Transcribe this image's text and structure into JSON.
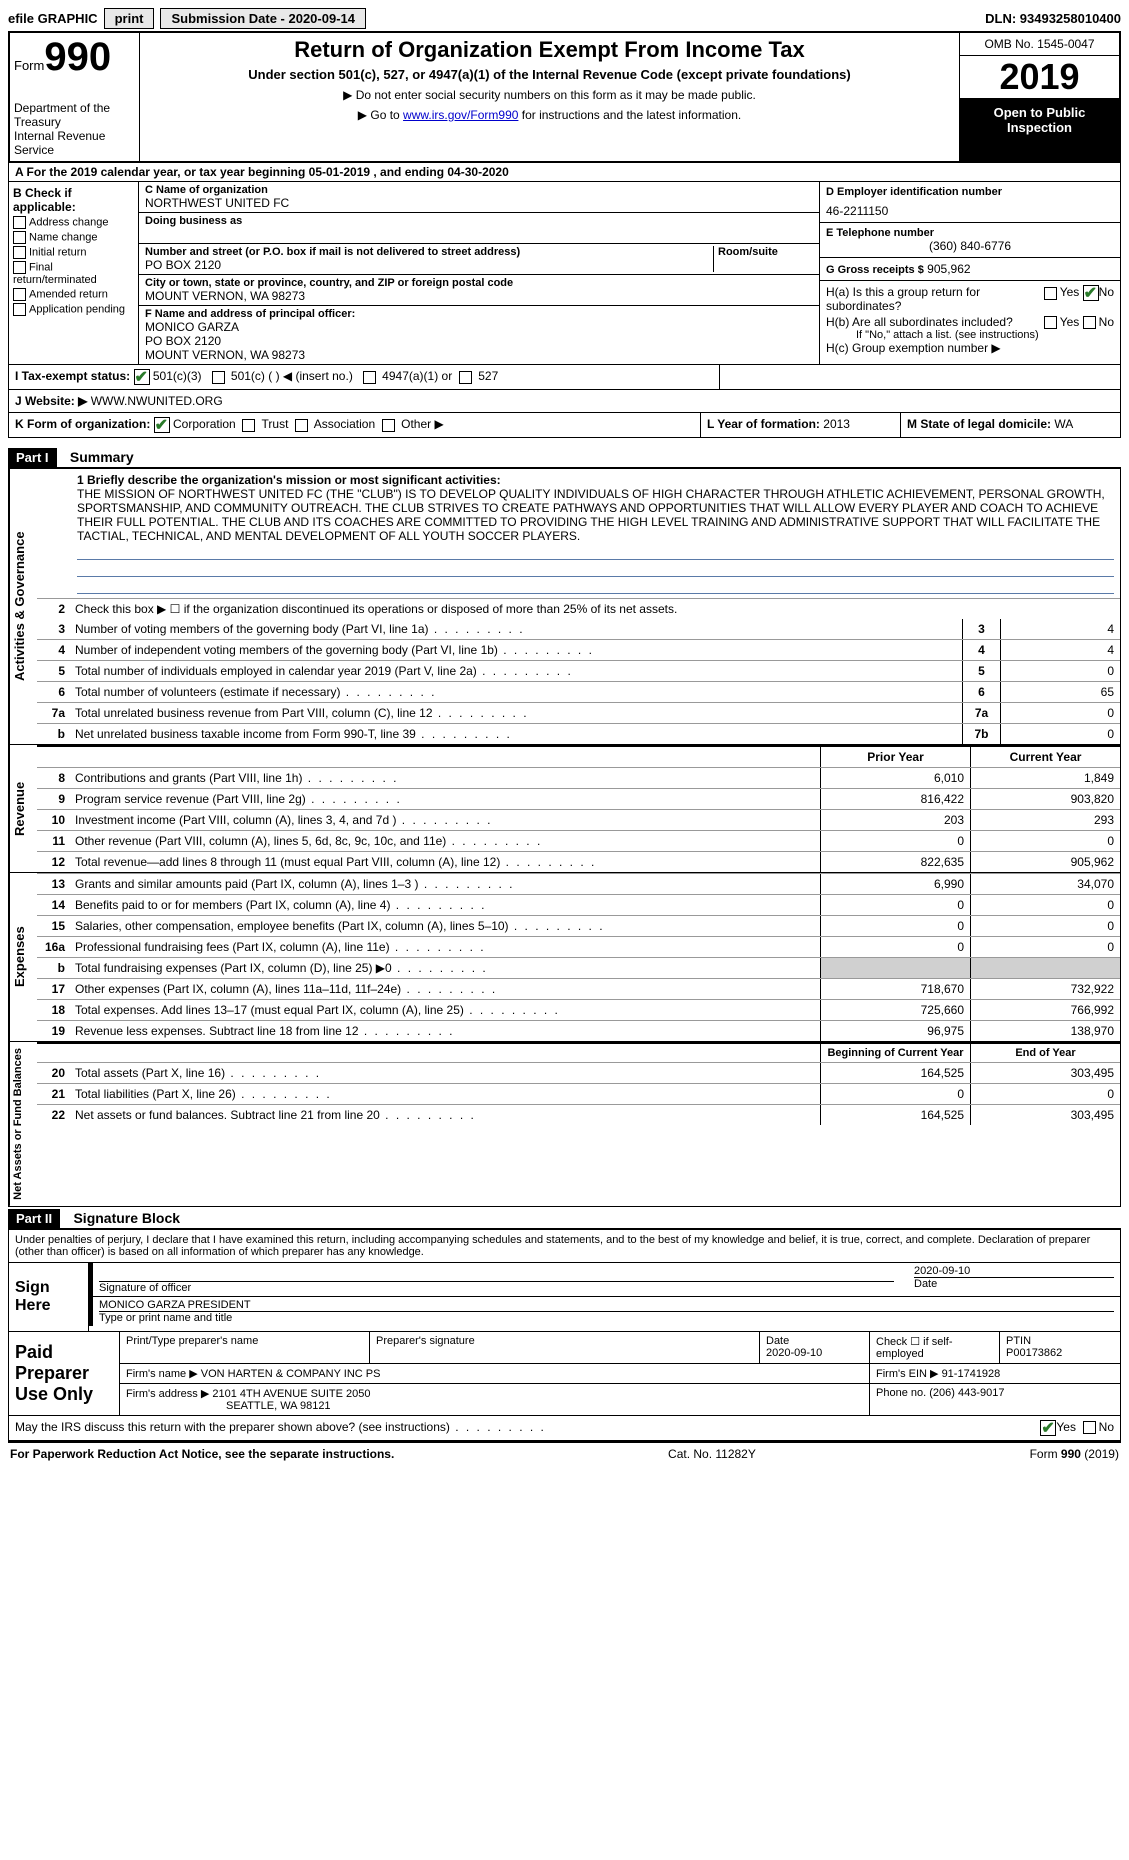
{
  "topbar": {
    "efile_label": "efile GRAPHIC",
    "print_btn": "print",
    "submission_label": "Submission Date - 2020-09-14",
    "dln": "DLN: 93493258010400"
  },
  "header": {
    "form_word": "Form",
    "form_number": "990",
    "dept_line1": "Department of the Treasury",
    "dept_line2": "Internal Revenue Service",
    "title": "Return of Organization Exempt From Income Tax",
    "subtitle": "Under section 501(c), 527, or 4947(a)(1) of the Internal Revenue Code (except private foundations)",
    "note1": "▶ Do not enter social security numbers on this form as it may be made public.",
    "note2_pre": "▶ Go to ",
    "note2_link": "www.irs.gov/Form990",
    "note2_post": " for instructions and the latest information.",
    "omb": "OMB No. 1545-0047",
    "year": "2019",
    "open_inspect": "Open to Public Inspection"
  },
  "section_a": "A For the 2019 calendar year, or tax year beginning 05-01-2019   , and ending 04-30-2020",
  "col_b": {
    "header": "B Check if applicable:",
    "items": [
      "Address change",
      "Name change",
      "Initial return",
      "Final return/terminated",
      "Amended return",
      "Application pending"
    ]
  },
  "col_c": {
    "name_label": "C Name of organization",
    "name": "NORTHWEST UNITED FC",
    "dba_label": "Doing business as",
    "addr_label": "Number and street (or P.O. box if mail is not delivered to street address)",
    "room_label": "Room/suite",
    "addr": "PO BOX 2120",
    "city_label": "City or town, state or province, country, and ZIP or foreign postal code",
    "city": "MOUNT VERNON, WA  98273",
    "officer_label": "F  Name and address of principal officer:",
    "officer_name": "MONICO GARZA",
    "officer_addr1": "PO BOX 2120",
    "officer_addr2": "MOUNT VERNON, WA  98273"
  },
  "col_d": {
    "ein_label": "D Employer identification number",
    "ein": "46-2211150",
    "tel_label": "E Telephone number",
    "tel": "(360) 840-6776",
    "gross_label": "G Gross receipts $",
    "gross": "905,962"
  },
  "section_h": {
    "ha": "H(a)  Is this a group return for subordinates?",
    "hb": "H(b)  Are all subordinates included?",
    "hb_note": "If \"No,\" attach a list. (see instructions)",
    "hc": "H(c)  Group exemption number ▶",
    "yes": "Yes",
    "no": "No"
  },
  "tax_status": {
    "i_label": "I   Tax-exempt status:",
    "opt1": "501(c)(3)",
    "opt2": "501(c) (  ) ◀ (insert no.)",
    "opt3": "4947(a)(1) or",
    "opt4": "527"
  },
  "website": {
    "j_label": "J   Website: ▶",
    "url": "WWW.NWUNITED.ORG"
  },
  "form_org": {
    "k_label": "K Form of organization:",
    "corp": "Corporation",
    "trust": "Trust",
    "assoc": "Association",
    "other": "Other ▶",
    "l_label": "L Year of formation:",
    "l_val": "2013",
    "m_label": "M State of legal domicile:",
    "m_val": "WA"
  },
  "part1": {
    "header": "Part I",
    "title": "Summary"
  },
  "governance": {
    "label": "Activities & Governance",
    "q1_label": "1   Briefly describe the organization's mission or most significant activities:",
    "mission": "THE MISSION OF NORTHWEST UNITED FC (THE \"CLUB\") IS TO DEVELOP QUALITY INDIVIDUALS OF HIGH CHARACTER THROUGH ATHLETIC ACHIEVEMENT, PERSONAL GROWTH, SPORTSMANSHIP, AND COMMUNITY OUTREACH. THE CLUB STRIVES TO CREATE PATHWAYS AND OPPORTUNITIES THAT WILL ALLOW EVERY PLAYER AND COACH TO ACHIEVE THEIR FULL POTENTIAL. THE CLUB AND ITS COACHES ARE COMMITTED TO PROVIDING THE HIGH LEVEL TRAINING AND ADMINISTRATIVE SUPPORT THAT WILL FACILITATE THE TACTIAL, TECHNICAL, AND MENTAL DEVELOPMENT OF ALL YOUTH SOCCER PLAYERS.",
    "q2": "Check this box ▶ ☐  if the organization discontinued its operations or disposed of more than 25% of its net assets.",
    "lines": [
      {
        "n": "3",
        "t": "Number of voting members of the governing body (Part VI, line 1a)",
        "bn": "3",
        "v": "4"
      },
      {
        "n": "4",
        "t": "Number of independent voting members of the governing body (Part VI, line 1b)",
        "bn": "4",
        "v": "4"
      },
      {
        "n": "5",
        "t": "Total number of individuals employed in calendar year 2019 (Part V, line 2a)",
        "bn": "5",
        "v": "0"
      },
      {
        "n": "6",
        "t": "Total number of volunteers (estimate if necessary)",
        "bn": "6",
        "v": "65"
      },
      {
        "n": "7a",
        "t": "Total unrelated business revenue from Part VIII, column (C), line 12",
        "bn": "7a",
        "v": "0"
      },
      {
        "n": "b",
        "t": "Net unrelated business taxable income from Form 990-T, line 39",
        "bn": "7b",
        "v": "0"
      }
    ]
  },
  "revenue": {
    "label": "Revenue",
    "header_prior": "Prior Year",
    "header_current": "Current Year",
    "lines": [
      {
        "n": "8",
        "t": "Contributions and grants (Part VIII, line 1h)",
        "c1": "6,010",
        "c2": "1,849"
      },
      {
        "n": "9",
        "t": "Program service revenue (Part VIII, line 2g)",
        "c1": "816,422",
        "c2": "903,820"
      },
      {
        "n": "10",
        "t": "Investment income (Part VIII, column (A), lines 3, 4, and 7d )",
        "c1": "203",
        "c2": "293"
      },
      {
        "n": "11",
        "t": "Other revenue (Part VIII, column (A), lines 5, 6d, 8c, 9c, 10c, and 11e)",
        "c1": "0",
        "c2": "0"
      },
      {
        "n": "12",
        "t": "Total revenue—add lines 8 through 11 (must equal Part VIII, column (A), line 12)",
        "c1": "822,635",
        "c2": "905,962"
      }
    ]
  },
  "expenses": {
    "label": "Expenses",
    "lines": [
      {
        "n": "13",
        "t": "Grants and similar amounts paid (Part IX, column (A), lines 1–3 )",
        "c1": "6,990",
        "c2": "34,070"
      },
      {
        "n": "14",
        "t": "Benefits paid to or for members (Part IX, column (A), line 4)",
        "c1": "0",
        "c2": "0"
      },
      {
        "n": "15",
        "t": "Salaries, other compensation, employee benefits (Part IX, column (A), lines 5–10)",
        "c1": "0",
        "c2": "0"
      },
      {
        "n": "16a",
        "t": "Professional fundraising fees (Part IX, column (A), line 11e)",
        "c1": "0",
        "c2": "0"
      },
      {
        "n": "b",
        "t": "Total fundraising expenses (Part IX, column (D), line 25) ▶0",
        "c1": "",
        "c2": "",
        "gray": true
      },
      {
        "n": "17",
        "t": "Other expenses (Part IX, column (A), lines 11a–11d, 11f–24e)",
        "c1": "718,670",
        "c2": "732,922"
      },
      {
        "n": "18",
        "t": "Total expenses. Add lines 13–17 (must equal Part IX, column (A), line 25)",
        "c1": "725,660",
        "c2": "766,992"
      },
      {
        "n": "19",
        "t": "Revenue less expenses. Subtract line 18 from line 12",
        "c1": "96,975",
        "c2": "138,970"
      }
    ]
  },
  "netassets": {
    "label": "Net Assets or Fund Balances",
    "header_begin": "Beginning of Current Year",
    "header_end": "End of Year",
    "lines": [
      {
        "n": "20",
        "t": "Total assets (Part X, line 16)",
        "c1": "164,525",
        "c2": "303,495"
      },
      {
        "n": "21",
        "t": "Total liabilities (Part X, line 26)",
        "c1": "0",
        "c2": "0"
      },
      {
        "n": "22",
        "t": "Net assets or fund balances. Subtract line 21 from line 20",
        "c1": "164,525",
        "c2": "303,495"
      }
    ]
  },
  "part2": {
    "header": "Part II",
    "title": "Signature Block",
    "perjury": "Under penalties of perjury, I declare that I have examined this return, including accompanying schedules and statements, and to the best of my knowledge and belief, it is true, correct, and complete. Declaration of preparer (other than officer) is based on all information of which preparer has any knowledge.",
    "sign_here": "Sign Here",
    "sig_officer_label": "Signature of officer",
    "sig_date": "2020-09-10",
    "date_label": "Date",
    "officer_name": "MONICO GARZA  PRESIDENT",
    "type_label": "Type or print name and title",
    "paid_label": "Paid Preparer Use Only",
    "prep_name_label": "Print/Type preparer's name",
    "prep_sig_label": "Preparer's signature",
    "prep_date_label": "Date",
    "prep_date": "2020-09-10",
    "check_if_label": "Check ☐ if self-employed",
    "ptin_label": "PTIN",
    "ptin": "P00173862",
    "firm_name_label": "Firm's name    ▶",
    "firm_name": "VON HARTEN & COMPANY INC PS",
    "firm_ein_label": "Firm's EIN ▶",
    "firm_ein": "91-1741928",
    "firm_addr_label": "Firm's address ▶",
    "firm_addr1": "2101 4TH AVENUE SUITE 2050",
    "firm_addr2": "SEATTLE, WA  98121",
    "phone_label": "Phone no.",
    "phone": "(206) 443-9017",
    "discuss": "May the IRS discuss this return with the preparer shown above? (see instructions)",
    "yes": "Yes",
    "no": "No"
  },
  "footer": {
    "left": "For Paperwork Reduction Act Notice, see the separate instructions.",
    "center": "Cat. No. 11282Y",
    "right": "Form 990 (2019)"
  }
}
